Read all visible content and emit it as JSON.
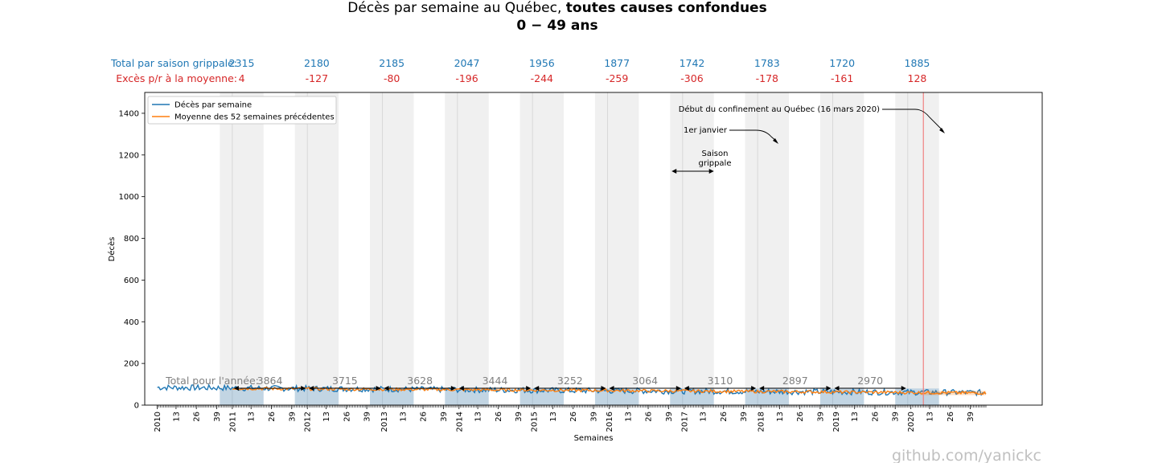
{
  "title": {
    "prefix": "Décès par semaine au Québec, ",
    "bold": "toutes causes confondues",
    "subtitle": "0 − 49 ans"
  },
  "header_rows": {
    "flu_total_label": "Total par saison grippale:",
    "flu_total_values": [
      "2315",
      "2180",
      "2185",
      "2047",
      "1956",
      "1877",
      "1742",
      "1783",
      "1720",
      "1885"
    ],
    "excess_label": "Excès p/r à la moyenne:",
    "excess_values": [
      "4",
      "-127",
      "-80",
      "-196",
      "-244",
      "-259",
      "-306",
      "-178",
      "-161",
      "128"
    ],
    "total_color": "#1f77b4",
    "excess_color": "#d62728"
  },
  "annotations": {
    "lockdown": "Début du confinement au Québec (16 mars 2020)",
    "jan1": "1er janvier",
    "season_line1": "Saison",
    "season_line2": "grippale",
    "year_total_label": "Total pour l'année:",
    "watermark": "github.com/yanickc"
  },
  "chart_data": {
    "type": "line",
    "xlabel": "Semaines",
    "ylabel": "Décès",
    "ylim": [
      0,
      1500
    ],
    "yticks": [
      0,
      200,
      400,
      600,
      800,
      1000,
      1200,
      1400
    ],
    "xlim_weeks": [
      -8,
      566
    ],
    "grid": false,
    "legend_position": "top-left",
    "x_tick_labels": [
      {
        "week": 0,
        "label": "2010"
      },
      {
        "week": 12,
        "label": "13"
      },
      {
        "week": 25,
        "label": "26"
      },
      {
        "week": 38,
        "label": "39"
      },
      {
        "week": 48,
        "label": "2011"
      },
      {
        "week": 60,
        "label": "13"
      },
      {
        "week": 73,
        "label": "26"
      },
      {
        "week": 86,
        "label": "39"
      },
      {
        "week": 96,
        "label": "2012"
      },
      {
        "week": 108,
        "label": "13"
      },
      {
        "week": 121,
        "label": "26"
      },
      {
        "week": 134,
        "label": "39"
      },
      {
        "week": 145,
        "label": "2013"
      },
      {
        "week": 157,
        "label": "13"
      },
      {
        "week": 170,
        "label": "26"
      },
      {
        "week": 183,
        "label": "39"
      },
      {
        "week": 193,
        "label": "2014"
      },
      {
        "week": 205,
        "label": "13"
      },
      {
        "week": 218,
        "label": "26"
      },
      {
        "week": 231,
        "label": "39"
      },
      {
        "week": 241,
        "label": "2015"
      },
      {
        "week": 253,
        "label": "13"
      },
      {
        "week": 266,
        "label": "26"
      },
      {
        "week": 279,
        "label": "39"
      },
      {
        "week": 289,
        "label": "2016"
      },
      {
        "week": 301,
        "label": "13"
      },
      {
        "week": 314,
        "label": "26"
      },
      {
        "week": 327,
        "label": "39"
      },
      {
        "week": 337,
        "label": "2017"
      },
      {
        "week": 349,
        "label": "13"
      },
      {
        "week": 362,
        "label": "26"
      },
      {
        "week": 375,
        "label": "39"
      },
      {
        "week": 386,
        "label": "2018"
      },
      {
        "week": 398,
        "label": "13"
      },
      {
        "week": 411,
        "label": "26"
      },
      {
        "week": 424,
        "label": "39"
      },
      {
        "week": 434,
        "label": "2019"
      },
      {
        "week": 446,
        "label": "13"
      },
      {
        "week": 459,
        "label": "26"
      },
      {
        "week": 472,
        "label": "39"
      },
      {
        "week": 482,
        "label": "2020"
      },
      {
        "week": 494,
        "label": "13"
      },
      {
        "week": 507,
        "label": "26"
      },
      {
        "week": 520,
        "label": "39"
      }
    ],
    "flu_seasons": [
      {
        "start": 40,
        "jan1": 48,
        "end": 68
      },
      {
        "start": 88,
        "jan1": 96,
        "end": 116
      },
      {
        "start": 136,
        "jan1": 144,
        "end": 164
      },
      {
        "start": 184,
        "jan1": 192,
        "end": 212
      },
      {
        "start": 232,
        "jan1": 240,
        "end": 260
      },
      {
        "start": 280,
        "jan1": 288,
        "end": 308
      },
      {
        "start": 328,
        "jan1": 336,
        "end": 356
      },
      {
        "start": 376,
        "jan1": 384,
        "end": 404
      },
      {
        "start": 424,
        "jan1": 432,
        "end": 452
      },
      {
        "start": 472,
        "jan1": 480,
        "end": 500
      }
    ],
    "lockdown_week": 490,
    "year_totals": [
      {
        "from": 48,
        "to": 96,
        "label": "3864"
      },
      {
        "from": 96,
        "to": 144,
        "label": "3715"
      },
      {
        "from": 144,
        "to": 192,
        "label": "3628"
      },
      {
        "from": 192,
        "to": 240,
        "label": "3444"
      },
      {
        "from": 240,
        "to": 288,
        "label": "3252"
      },
      {
        "from": 288,
        "to": 336,
        "label": "3064"
      },
      {
        "from": 336,
        "to": 384,
        "label": "3110"
      },
      {
        "from": 384,
        "to": 432,
        "label": "2897"
      },
      {
        "from": 432,
        "to": 480,
        "label": "2970"
      }
    ],
    "season_arrow": {
      "from": 329,
      "to": 356
    },
    "series": [
      {
        "name": "Décès par semaine",
        "color": "#1f77b4",
        "weeks": [
          0,
          530
        ],
        "approx_level": [
          85,
          70,
          60
        ],
        "noise_amplitude": 14
      },
      {
        "name": "Moyenne des 52 semaines précédentes",
        "color": "#ff7f0e",
        "weeks": [
          48,
          530
        ],
        "approx_level": [
          80,
          70,
          58
        ],
        "noise_amplitude": 7
      }
    ]
  }
}
